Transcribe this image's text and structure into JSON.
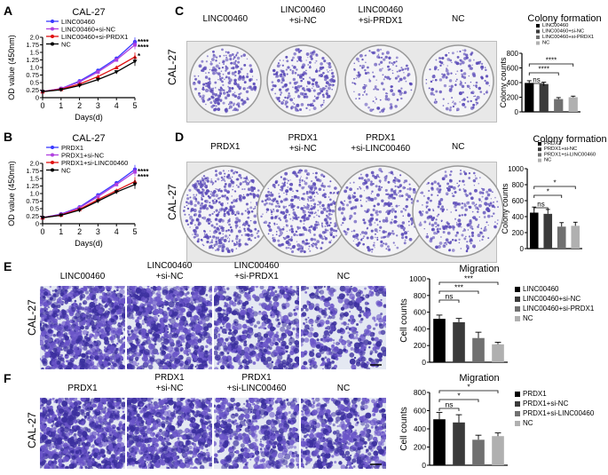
{
  "panels": {
    "A": {
      "letter": "A",
      "cell_line": "CAL-27",
      "legend": [
        "LINC00460",
        "LINC00460+si-NC",
        "LINC00460+si-PRDX1",
        "NC"
      ],
      "sig": [
        "****",
        "****",
        "*"
      ]
    },
    "B": {
      "letter": "B",
      "cell_line": "CAL-27",
      "legend": [
        "PRDX1",
        "PRDX1+si-NC",
        "PRDX1+si-LINC00460",
        "NC"
      ],
      "sig": [
        "****",
        "****"
      ]
    },
    "C": {
      "letter": "C",
      "cell_line": "CAL-27",
      "dish_labels": [
        "LINC00460",
        "LINC00460\n+si-NC",
        "LINC00460\n+si-PRDX1",
        "NC"
      ],
      "bar_title": "Colony formation",
      "legend": [
        "LINC00460",
        "LINC00460+si-NC",
        "LINC00460+si-PRDX1",
        "NC"
      ],
      "sig": [
        "ns",
        "****",
        "****"
      ]
    },
    "D": {
      "letter": "D",
      "cell_line": "CAL-27",
      "dish_labels": [
        "PRDX1",
        "PRDX1\n+si-NC",
        "PRDX1\n+si-LINC00460",
        "NC"
      ],
      "bar_title": "Colony formation",
      "legend": [
        "PRDX1",
        "PRDX1+si-NC",
        "PRDX1+si-LINC00460",
        "NC"
      ],
      "sig": [
        "ns",
        "*",
        "*"
      ]
    },
    "E": {
      "letter": "E",
      "cell_line": "CAL-27",
      "image_labels": [
        "LINC00460",
        "LINC00460\n+si-NC",
        "LINC00460\n+si-PRDX1",
        "NC"
      ],
      "bar_title": "Migration",
      "legend": [
        "LINC00460",
        "LINC00460+si-NC",
        "LINC00460+si-PRDX1",
        "NC"
      ],
      "sig": [
        "ns",
        "***",
        "***"
      ]
    },
    "F": {
      "letter": "F",
      "cell_line": "CAL-27",
      "image_labels": [
        "PRDX1",
        "PRDX1\n+si-NC",
        "PRDX1\n+si-LINC00460",
        "NC"
      ],
      "bar_title": "Migration",
      "legend": [
        "PRDX1",
        "PRDX1+si-NC",
        "PRDX1+si-LINC00460",
        "NC"
      ],
      "sig": [
        "ns",
        "*",
        "*"
      ]
    }
  },
  "colors": {
    "blue": "#3a3aff",
    "purple": "#b040e0",
    "red": "#e01010",
    "black": "#000000",
    "bar1": "#000000",
    "bar2": "#3a3a3a",
    "bar3": "#707070",
    "bar4": "#b0b0b0",
    "stain": "#5a4ab8"
  },
  "chart_data": [
    {
      "id": "A",
      "type": "line",
      "title": "CAL-27",
      "xlabel": "Days(d)",
      "ylabel": "OD value (450nm)",
      "x": [
        0,
        1,
        2,
        3,
        4,
        5
      ],
      "xlim": [
        0,
        5
      ],
      "ylim": [
        0,
        2.0
      ],
      "yticks": [
        0,
        0.25,
        0.5,
        0.75,
        1.0,
        1.25,
        1.5,
        1.75,
        2.0
      ],
      "ytick_labels": [
        "0",
        "0.25",
        "0.5",
        "0.75",
        "1.0",
        "1.25",
        "1.5",
        "1.75",
        "2.0"
      ],
      "series": [
        {
          "name": "LINC00460",
          "values": [
            0.2,
            0.3,
            0.55,
            0.9,
            1.3,
            1.85
          ],
          "color": "#3a3aff"
        },
        {
          "name": "LINC00460+si-NC",
          "values": [
            0.2,
            0.3,
            0.52,
            0.85,
            1.25,
            1.75
          ],
          "color": "#b040e0"
        },
        {
          "name": "LINC00460+si-PRDX1",
          "values": [
            0.2,
            0.28,
            0.45,
            0.7,
            1.0,
            1.35
          ],
          "color": "#e01010"
        },
        {
          "name": "NC",
          "values": [
            0.2,
            0.26,
            0.4,
            0.6,
            0.85,
            1.2
          ],
          "color": "#000000"
        }
      ]
    },
    {
      "id": "B",
      "type": "line",
      "title": "CAL-27",
      "xlabel": "Days(d)",
      "ylabel": "OD value (450nm)",
      "x": [
        0,
        1,
        2,
        3,
        4,
        5
      ],
      "xlim": [
        0,
        5
      ],
      "ylim": [
        0,
        2.0
      ],
      "yticks": [
        0,
        0.25,
        0.5,
        0.75,
        1.0,
        1.25,
        1.5,
        1.75,
        2.0
      ],
      "ytick_labels": [
        "0",
        "0.25",
        "0.5",
        "0.75",
        "1.0",
        "1.25",
        "1.5",
        "1.75",
        "2.0"
      ],
      "series": [
        {
          "name": "PRDX1",
          "values": [
            0.2,
            0.32,
            0.55,
            0.95,
            1.35,
            1.8
          ],
          "color": "#3a3aff"
        },
        {
          "name": "PRDX1+si-NC",
          "values": [
            0.2,
            0.31,
            0.53,
            0.9,
            1.3,
            1.72
          ],
          "color": "#b040e0"
        },
        {
          "name": "PRDX1+si-LINC00460",
          "values": [
            0.2,
            0.29,
            0.48,
            0.8,
            1.1,
            1.4
          ],
          "color": "#e01010"
        },
        {
          "name": "NC",
          "values": [
            0.2,
            0.28,
            0.45,
            0.75,
            1.05,
            1.3
          ],
          "color": "#000000"
        }
      ]
    },
    {
      "id": "C",
      "type": "bar",
      "title": "Colony formation",
      "ylabel": "Colony counts",
      "categories": [
        "LINC00460",
        "LINC00460+si-NC",
        "LINC00460+si-PRDX1",
        "NC"
      ],
      "values": [
        395,
        380,
        175,
        200
      ],
      "errors": [
        30,
        25,
        20,
        15
      ],
      "ylim": [
        0,
        800
      ],
      "yticks": [
        0,
        200,
        400,
        600,
        800
      ]
    },
    {
      "id": "D",
      "type": "bar",
      "title": "Colony formation",
      "ylabel": "Colony counts",
      "categories": [
        "PRDX1",
        "PRDX1+si-NC",
        "PRDX1+si-LINC00460",
        "NC"
      ],
      "values": [
        450,
        435,
        275,
        285
      ],
      "errors": [
        70,
        55,
        50,
        45
      ],
      "ylim": [
        0,
        1000
      ],
      "yticks": [
        0,
        200,
        400,
        600,
        800,
        1000
      ]
    },
    {
      "id": "E",
      "type": "bar",
      "title": "Migration",
      "ylabel": "Cell counts",
      "categories": [
        "LINC00460",
        "LINC00460+si-NC",
        "LINC00460+si-PRDX1",
        "NC"
      ],
      "values": [
        520,
        480,
        290,
        215
      ],
      "errors": [
        45,
        45,
        70,
        25
      ],
      "ylim": [
        0,
        1000
      ],
      "yticks": [
        0,
        200,
        400,
        600,
        800,
        1000
      ]
    },
    {
      "id": "F",
      "type": "bar",
      "title": "Migration",
      "ylabel": "Cell counts",
      "categories": [
        "PRDX1",
        "PRDX1+si-NC",
        "PRDX1+si-LINC00460",
        "NC"
      ],
      "values": [
        505,
        470,
        280,
        320
      ],
      "errors": [
        75,
        85,
        50,
        35
      ],
      "ylim": [
        0,
        800
      ],
      "yticks": [
        0,
        200,
        400,
        600,
        800
      ]
    }
  ]
}
